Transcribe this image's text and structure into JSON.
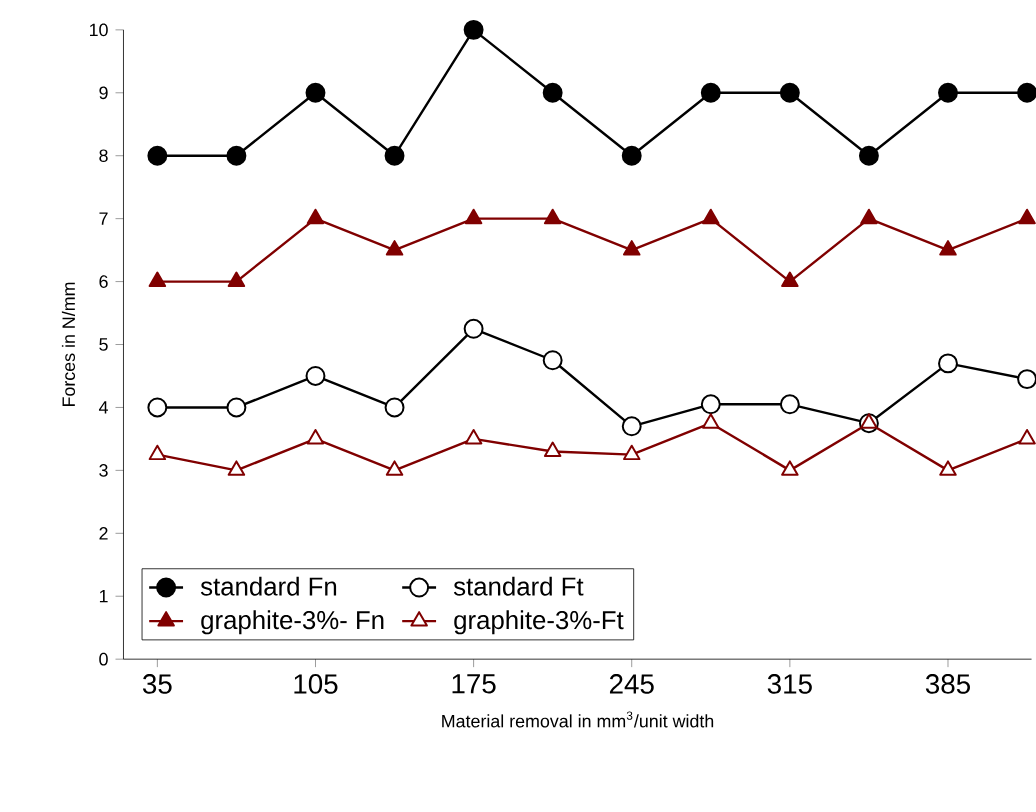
{
  "chart_data": {
    "type": "line",
    "xlabel": "Material removal in mm$^{3}$/unit width",
    "ylabel": "Forces in N/mm",
    "x": [
      35,
      70,
      105,
      140,
      175,
      210,
      245,
      280,
      315,
      350,
      385,
      420
    ],
    "series": [
      {
        "name": "standard Fn",
        "color": "#000000",
        "marker": "circle",
        "values": [
          8,
          8,
          9,
          8,
          10,
          9,
          8,
          9,
          9,
          8,
          9,
          9
        ]
      },
      {
        "name": "standard Ft",
        "color": "#000000",
        "marker": "circle",
        "values": [
          4,
          4,
          4.5,
          4,
          5.25,
          4.75,
          3.7,
          4.05,
          4.05,
          3.75,
          4.7,
          4.45
        ]
      },
      {
        "name": "graphite-3%- Fn",
        "color": "#800000",
        "marker": "triangle",
        "values": [
          6,
          6,
          7,
          6.5,
          7,
          7,
          6.5,
          7,
          6,
          7,
          6.5,
          7
        ]
      },
      {
        "name": "graphite-3%-Ft",
        "color": "#800000",
        "marker": "triangle",
        "values": [
          3.25,
          3,
          3.5,
          3,
          3.5,
          3.3,
          3.25,
          3.75,
          3,
          3.75,
          3,
          3.5
        ]
      }
    ],
    "xlim": [
      20,
      422
    ],
    "xticks": [
      35,
      105,
      175,
      245,
      315,
      385
    ],
    "ylim": [
      0,
      10
    ],
    "yticks": [
      0,
      1,
      2,
      3,
      4,
      5,
      6,
      7,
      8,
      9,
      10
    ],
    "grid": false,
    "legend": "bottom",
    "line_style": "solid"
  }
}
